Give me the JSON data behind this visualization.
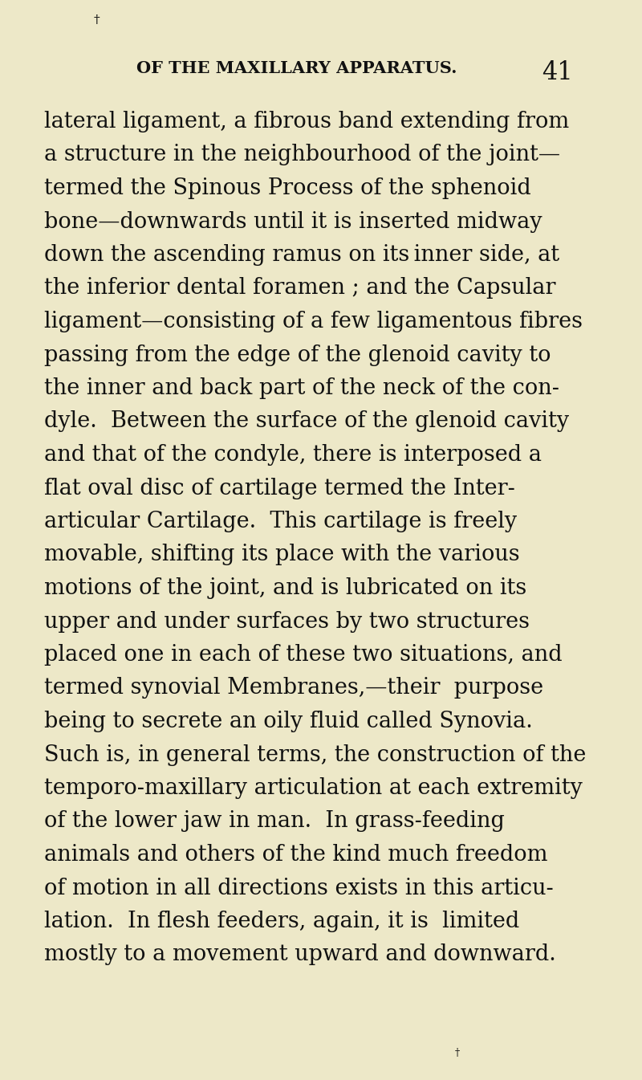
{
  "background_color": "#ede8c8",
  "text_color": "#111111",
  "page_width": 8.0,
  "page_height": 13.45,
  "dpi": 100,
  "header_text": "OF THE MAXILLARY APPARATUS.",
  "header_page_num": "41",
  "body_fontsize": 19.5,
  "header_fontsize": 15.0,
  "header_num_fontsize": 22.0,
  "top_mark": "†",
  "bottom_mark": "†",
  "body_text": "lateral ligament, a fibrous band extending from\na structure in the neighbourhood of the joint—\ntermed the Spinous Process of the sphenoid\nbone—downwards until it is inserted midway\ndown the ascending ramus on its inner side, at\nthe inferior dental foramen ; and the Capsular\nligament—consisting of a few ligamentous fibres\npassing from the edge of the glenoid cavity to\nthe inner and back part of the neck of the con-\ndyle.  Between the surface of the glenoid cavity\nand that of the condyle, there is interposed a\nflat oval disc of cartilage termed the Inter-\narticular Cartilage.  This cartilage is freely\nmovable, shifting its place with the various\nmotions of the joint, and is lubricated on its\nupper and under surfaces by two structures\nplaced one in each of these two situations, and\ntermed synovial Membranes,—their  purpose\nbeing to secrete an oily fluid called Synovia.\nSuch is, in general terms, the construction of the\ntemporo-maxillary articulation at each extremity\nof the lower jaw in man.  In grass-feeding\nanimals and others of the kind much freedom\nof motion in all directions exists in this articu-\nlation.  In flesh feeders, again, it is  limited\nmostly to a movement upward and downward."
}
